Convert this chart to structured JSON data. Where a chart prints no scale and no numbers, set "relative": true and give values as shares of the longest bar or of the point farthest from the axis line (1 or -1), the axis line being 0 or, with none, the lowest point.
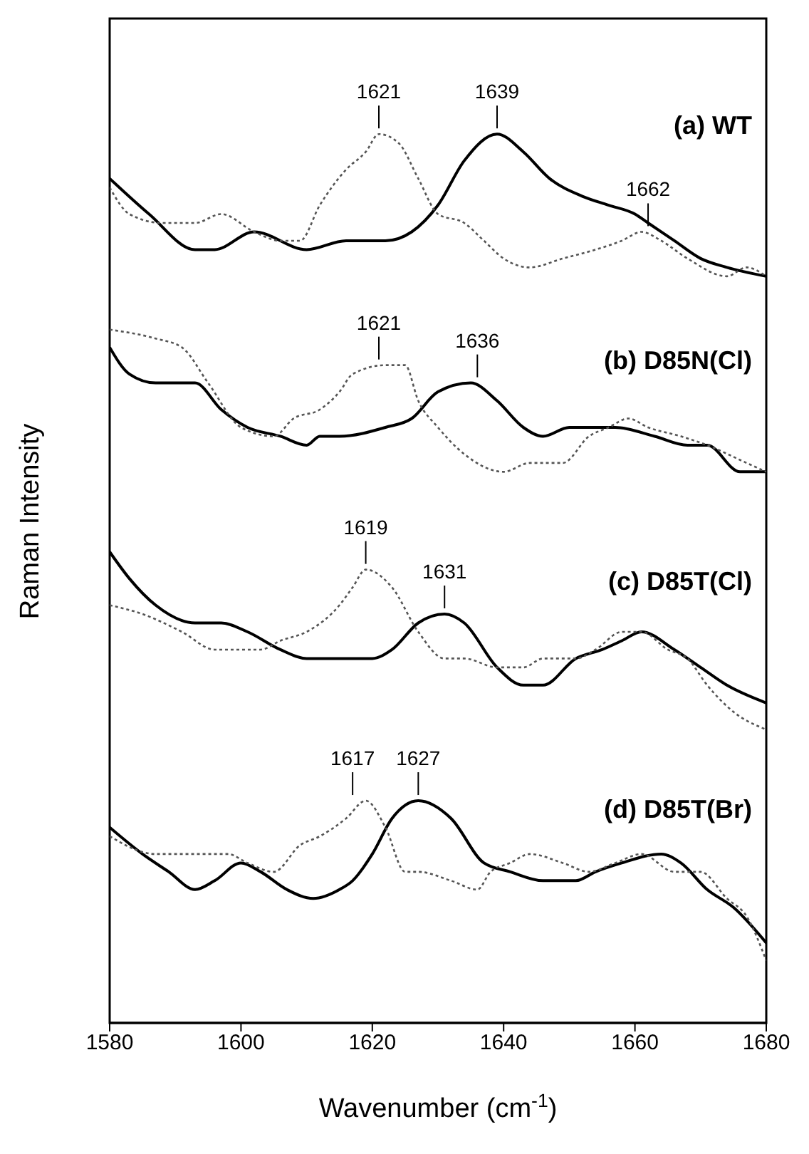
{
  "chart_data": {
    "type": "line",
    "relative": true,
    "xlabel": "Wavenumber (cm$^{-1}$)",
    "ylabel": "Raman Intensity",
    "xlim": [
      1580,
      1680
    ],
    "xticks": [
      1580,
      1600,
      1620,
      1640,
      1660,
      1680
    ],
    "marker": "none",
    "series": [
      {
        "color": "#000000",
        "line_style": "solid",
        "x": [
          1580,
          1586,
          1593,
          1596,
          1602,
          1610,
          1616,
          1622,
          1626,
          1630,
          1634,
          1639,
          1643,
          1647,
          1652,
          1656,
          1660,
          1662,
          1666,
          1670,
          1674,
          1680
        ],
        "values": [
          0.95,
          0.91,
          0.87,
          0.87,
          0.89,
          0.87,
          0.88,
          0.88,
          0.89,
          0.92,
          0.97,
          1.0,
          0.98,
          0.95,
          0.93,
          0.92,
          0.91,
          0.9,
          0.88,
          0.86,
          0.85,
          0.84
        ]
      },
      {
        "color": "#555555",
        "line_style": "dotted",
        "x": [
          1580,
          1583,
          1588,
          1593,
          1597,
          1602,
          1606,
          1609,
          1612,
          1616,
          1619,
          1621,
          1624,
          1627,
          1630,
          1634,
          1637,
          1640,
          1644,
          1649,
          1654,
          1658,
          1661,
          1664,
          1668,
          1674,
          1677,
          1680
        ],
        "values": [
          0.94,
          0.91,
          0.9,
          0.9,
          0.91,
          0.89,
          0.88,
          0.88,
          0.92,
          0.96,
          0.98,
          1.0,
          0.99,
          0.95,
          0.91,
          0.9,
          0.88,
          0.86,
          0.85,
          0.86,
          0.87,
          0.88,
          0.89,
          0.88,
          0.86,
          0.84,
          0.85,
          0.84
        ]
      },
      {
        "color": "#000000",
        "line_style": "solid",
        "x": [
          1580,
          1583,
          1587,
          1593,
          1597,
          1601,
          1606,
          1610,
          1612,
          1615,
          1622,
          1626,
          1630,
          1635,
          1639,
          1643,
          1646,
          1650,
          1654,
          1657,
          1663,
          1668,
          1671,
          1676,
          1680
        ],
        "values": [
          0.76,
          0.73,
          0.72,
          0.72,
          0.69,
          0.67,
          0.66,
          0.65,
          0.66,
          0.66,
          0.67,
          0.68,
          0.71,
          0.72,
          0.7,
          0.67,
          0.66,
          0.67,
          0.67,
          0.67,
          0.66,
          0.65,
          0.65,
          0.62,
          0.62
        ]
      },
      {
        "color": "#555555",
        "line_style": "dotted",
        "x": [
          1580,
          1587,
          1591,
          1595,
          1600,
          1605,
          1608,
          1612,
          1615,
          1617,
          1622,
          1625,
          1627,
          1630,
          1634,
          1640,
          1644,
          1649,
          1653,
          1656,
          1659,
          1662,
          1667,
          1671,
          1677,
          1680
        ],
        "values": [
          0.78,
          0.77,
          0.76,
          0.72,
          0.67,
          0.66,
          0.68,
          0.69,
          0.71,
          0.73,
          0.74,
          0.74,
          0.7,
          0.67,
          0.64,
          0.62,
          0.63,
          0.63,
          0.66,
          0.67,
          0.68,
          0.67,
          0.66,
          0.65,
          0.63,
          0.62
        ]
      },
      {
        "color": "#000000",
        "line_style": "solid",
        "x": [
          1580,
          1583,
          1587,
          1593,
          1597,
          1601,
          1606,
          1610,
          1615,
          1620,
          1623,
          1627,
          1631,
          1634,
          1639,
          1643,
          1646,
          1651,
          1655,
          1658,
          1661,
          1666,
          1670,
          1674,
          1680
        ],
        "values": [
          0.53,
          0.5,
          0.47,
          0.45,
          0.45,
          0.44,
          0.42,
          0.41,
          0.41,
          0.41,
          0.42,
          0.45,
          0.46,
          0.45,
          0.4,
          0.38,
          0.38,
          0.41,
          0.42,
          0.43,
          0.44,
          0.42,
          0.4,
          0.38,
          0.36
        ]
      },
      {
        "color": "#555555",
        "line_style": "dotted",
        "x": [
          1580,
          1585,
          1591,
          1596,
          1603,
          1606,
          1610,
          1615,
          1617,
          1619,
          1623,
          1627,
          1631,
          1634,
          1639,
          1643,
          1646,
          1651,
          1654,
          1658,
          1661,
          1665,
          1668,
          1671,
          1675,
          1680
        ],
        "values": [
          0.47,
          0.46,
          0.44,
          0.42,
          0.42,
          0.43,
          0.44,
          0.47,
          0.49,
          0.51,
          0.49,
          0.44,
          0.41,
          0.41,
          0.4,
          0.4,
          0.41,
          0.41,
          0.42,
          0.44,
          0.44,
          0.42,
          0.41,
          0.38,
          0.35,
          0.33
        ]
      },
      {
        "color": "#000000",
        "line_style": "solid",
        "x": [
          1580,
          1585,
          1589,
          1593,
          1596,
          1600,
          1603,
          1607,
          1611,
          1615,
          1617,
          1620,
          1623,
          1627,
          1632,
          1637,
          1641,
          1646,
          1651,
          1654,
          1658,
          1664,
          1667,
          1671,
          1675,
          1680
        ],
        "values": [
          0.22,
          0.19,
          0.17,
          0.15,
          0.16,
          0.18,
          0.17,
          0.15,
          0.14,
          0.15,
          0.16,
          0.19,
          0.23,
          0.25,
          0.23,
          0.18,
          0.17,
          0.16,
          0.16,
          0.17,
          0.18,
          0.19,
          0.18,
          0.15,
          0.13,
          0.09
        ]
      },
      {
        "color": "#555555",
        "line_style": "dotted",
        "x": [
          1580,
          1587,
          1593,
          1598,
          1601,
          1605,
          1609,
          1612,
          1616,
          1619,
          1622,
          1625,
          1627,
          1632,
          1636,
          1638,
          1641,
          1644,
          1649,
          1653,
          1657,
          1661,
          1666,
          1670,
          1674,
          1677,
          1680
        ],
        "values": [
          0.21,
          0.19,
          0.19,
          0.19,
          0.18,
          0.17,
          0.2,
          0.21,
          0.23,
          0.25,
          0.22,
          0.17,
          0.17,
          0.16,
          0.15,
          0.17,
          0.18,
          0.19,
          0.18,
          0.17,
          0.18,
          0.19,
          0.17,
          0.17,
          0.14,
          0.12,
          0.07
        ]
      }
    ],
    "annotations": [
      {
        "text": "1621",
        "x": 1621,
        "y": 1.0
      },
      {
        "text": "1639",
        "x": 1639,
        "y": 1.0
      },
      {
        "text": "1662",
        "x": 1662,
        "y": 0.89
      },
      {
        "text": "1621",
        "x": 1621,
        "y": 0.74
      },
      {
        "text": "1636",
        "x": 1636,
        "y": 0.72
      },
      {
        "text": "1619",
        "x": 1619,
        "y": 0.51
      },
      {
        "text": "1631",
        "x": 1631,
        "y": 0.46
      },
      {
        "text": "1617",
        "x": 1617,
        "y": 0.25
      },
      {
        "text": "1627",
        "x": 1627,
        "y": 0.25
      },
      "(a) WT",
      "(b) D85N(Cl)",
      "(c) D85T(Cl)",
      "(d) D85T(Br)"
    ]
  }
}
